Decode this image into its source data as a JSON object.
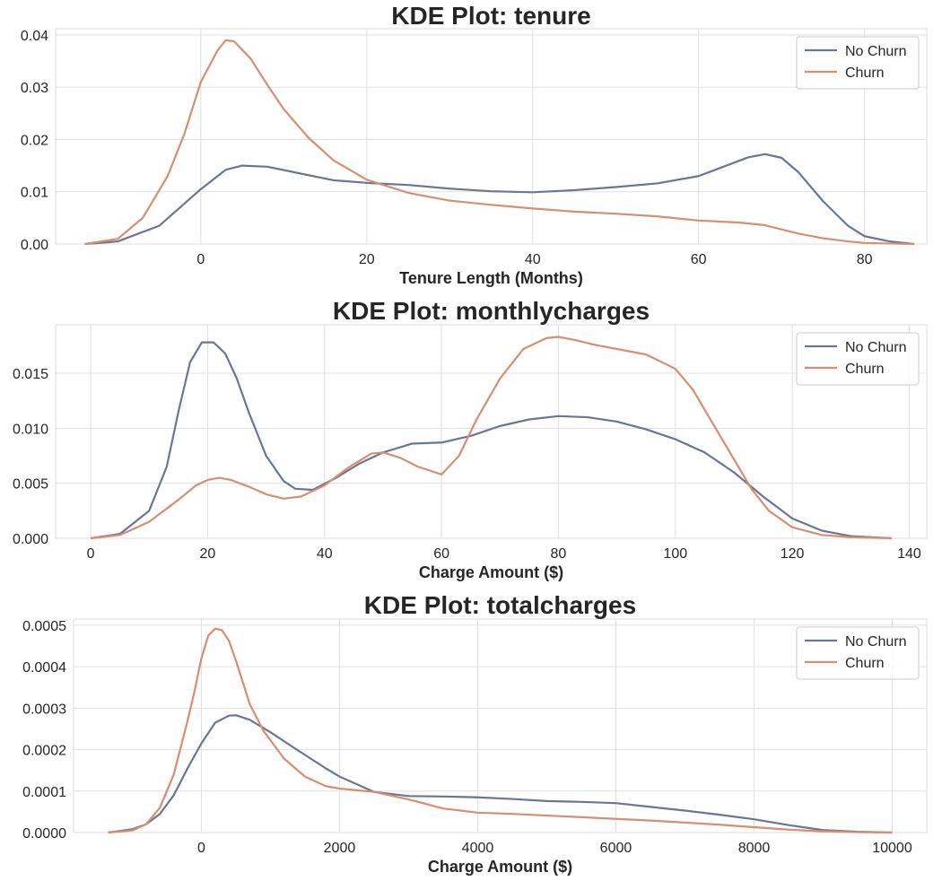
{
  "colors": {
    "no_churn": "#6c7592",
    "churn": "#d58f72",
    "grid": "#e0e0e0",
    "frame": "#dddddd"
  },
  "chart_data": [
    {
      "type": "line",
      "title": "KDE Plot: tenure",
      "xlabel": "Tenure Length (Months)",
      "ylabel": "",
      "xlim": [
        -17.5,
        87.5
      ],
      "ylim": [
        0,
        0.0412
      ],
      "xticks": [
        0,
        20,
        40,
        60,
        80
      ],
      "xtick_labels": [
        "0",
        "20",
        "40",
        "60",
        "80"
      ],
      "yticks": [
        0,
        0.01,
        0.02,
        0.03,
        0.04
      ],
      "ytick_labels": [
        "0.00",
        "0.01",
        "0.02",
        "0.03",
        "0.04"
      ],
      "grid": true,
      "legend": "top-right",
      "series": [
        {
          "name": "No Churn",
          "color": "#6c7592",
          "x": [
            -14,
            -10,
            -5,
            0,
            3,
            5,
            8,
            12,
            16,
            20,
            25,
            30,
            35,
            40,
            45,
            50,
            55,
            60,
            63,
            66,
            68,
            70,
            72,
            75,
            78,
            80,
            83,
            86
          ],
          "y": [
            0,
            0.0005,
            0.0035,
            0.0105,
            0.0142,
            0.015,
            0.0148,
            0.0135,
            0.0122,
            0.0117,
            0.0113,
            0.0106,
            0.0101,
            0.0099,
            0.0103,
            0.0109,
            0.0116,
            0.013,
            0.0148,
            0.0166,
            0.0172,
            0.0165,
            0.0138,
            0.0082,
            0.0035,
            0.0015,
            0.0005,
            0
          ]
        },
        {
          "name": "Churn",
          "color": "#d58f72",
          "x": [
            -14,
            -10,
            -7,
            -4,
            -2,
            0,
            2,
            3,
            4,
            6,
            8,
            10,
            13,
            16,
            20,
            25,
            30,
            35,
            40,
            45,
            50,
            55,
            60,
            65,
            68,
            70,
            72,
            75,
            78,
            80,
            83,
            86
          ],
          "y": [
            0,
            0.001,
            0.005,
            0.013,
            0.021,
            0.031,
            0.037,
            0.039,
            0.0388,
            0.0355,
            0.0305,
            0.0258,
            0.0203,
            0.016,
            0.0123,
            0.0098,
            0.0083,
            0.0075,
            0.0068,
            0.0062,
            0.0058,
            0.0053,
            0.0045,
            0.0041,
            0.0036,
            0.0028,
            0.002,
            0.0011,
            0.0005,
            0.0002,
            0.0001,
            0
          ]
        }
      ]
    },
    {
      "type": "line",
      "title": "KDE Plot: monthlycharges",
      "xlabel": "Charge Amount ($)",
      "ylabel": "",
      "xlim": [
        -6,
        143
      ],
      "ylim": [
        0,
        0.0194
      ],
      "xticks": [
        0,
        20,
        40,
        60,
        80,
        100,
        120,
        140
      ],
      "xtick_labels": [
        "0",
        "20",
        "40",
        "60",
        "80",
        "100",
        "120",
        "140"
      ],
      "yticks": [
        0,
        0.005,
        0.01,
        0.015
      ],
      "ytick_labels": [
        "0.000",
        "0.005",
        "0.010",
        "0.015"
      ],
      "grid": true,
      "legend": "top-right",
      "series": [
        {
          "name": "No Churn",
          "color": "#6c7592",
          "x": [
            0,
            5,
            10,
            13,
            15,
            17,
            19,
            21,
            23,
            25,
            27,
            30,
            33,
            35,
            38,
            42,
            46,
            50,
            55,
            60,
            65,
            70,
            75,
            80,
            85,
            90,
            95,
            100,
            105,
            110,
            115,
            120,
            125,
            130,
            137
          ],
          "y": [
            0,
            0.0004,
            0.0025,
            0.0065,
            0.0115,
            0.016,
            0.0178,
            0.0178,
            0.0168,
            0.0145,
            0.0115,
            0.0075,
            0.0052,
            0.0045,
            0.0044,
            0.0055,
            0.0068,
            0.0078,
            0.0086,
            0.0087,
            0.0093,
            0.0102,
            0.0108,
            0.0111,
            0.011,
            0.0106,
            0.0099,
            0.009,
            0.0078,
            0.006,
            0.0038,
            0.0018,
            0.0007,
            0.0002,
            0
          ]
        },
        {
          "name": "Churn",
          "color": "#d58f72",
          "x": [
            0,
            5,
            10,
            15,
            18,
            20,
            22,
            24,
            27,
            30,
            33,
            36,
            40,
            44,
            48,
            50,
            53,
            56,
            60,
            63,
            66,
            70,
            74,
            78,
            80,
            83,
            86,
            90,
            95,
            100,
            103,
            106,
            110,
            113,
            116,
            120,
            125,
            130,
            137
          ],
          "y": [
            0,
            0.0003,
            0.0015,
            0.0035,
            0.0048,
            0.0053,
            0.0055,
            0.0053,
            0.0047,
            0.004,
            0.0036,
            0.0038,
            0.0048,
            0.0064,
            0.0077,
            0.0078,
            0.0073,
            0.0065,
            0.0058,
            0.0075,
            0.0108,
            0.0145,
            0.0172,
            0.0182,
            0.0183,
            0.018,
            0.0176,
            0.0172,
            0.0167,
            0.0154,
            0.0135,
            0.0108,
            0.0072,
            0.0045,
            0.0025,
            0.001,
            0.0003,
            0.0001,
            0
          ]
        }
      ]
    },
    {
      "type": "line",
      "title": "KDE Plot: totalcharges",
      "xlabel": "Charge Amount ($)",
      "ylabel": "",
      "xlim": [
        -1850,
        10500
      ],
      "ylim": [
        0,
        0.000515
      ],
      "xticks": [
        0,
        2000,
        4000,
        6000,
        8000,
        10000
      ],
      "xtick_labels": [
        "0",
        "2000",
        "4000",
        "6000",
        "8000",
        "10000"
      ],
      "yticks": [
        0,
        0.0001,
        0.0002,
        0.0003,
        0.0004,
        0.0005
      ],
      "ytick_labels": [
        "0.0000",
        "0.0001",
        "0.0002",
        "0.0003",
        "0.0004",
        "0.0005"
      ],
      "grid": true,
      "legend": "top-right",
      "series": [
        {
          "name": "No Churn",
          "color": "#6c7592",
          "x": [
            -1350,
            -1000,
            -800,
            -600,
            -400,
            -200,
            0,
            200,
            400,
            500,
            700,
            1000,
            1400,
            1800,
            2000,
            2500,
            3000,
            3500,
            4000,
            4500,
            5000,
            5500,
            6000,
            6500,
            7000,
            7500,
            8000,
            8500,
            9000,
            9500,
            10000
          ],
          "y": [
            0,
            8e-06,
            2e-05,
            4.5e-05,
            9e-05,
            0.000155,
            0.000215,
            0.000265,
            0.000282,
            0.000283,
            0.000272,
            0.000242,
            0.000198,
            0.000155,
            0.000135,
            9.8e-05,
            8.8e-05,
            8.7e-05,
            8.5e-05,
            8.1e-05,
            7.6e-05,
            7.4e-05,
            7.1e-05,
            6.2e-05,
            5.3e-05,
            4.3e-05,
            3.2e-05,
            1.8e-05,
            6e-06,
            2e-06,
            0
          ]
        },
        {
          "name": "Churn",
          "color": "#d58f72",
          "x": [
            -1350,
            -1000,
            -800,
            -600,
            -400,
            -200,
            -100,
            0,
            100,
            200,
            300,
            400,
            500,
            700,
            900,
            1200,
            1500,
            1800,
            2000,
            2500,
            3000,
            3500,
            4000,
            4500,
            5000,
            5500,
            6000,
            6500,
            7000,
            7500,
            8000,
            8500,
            9000,
            9500,
            10000
          ],
          "y": [
            0,
            5e-06,
            2e-05,
            6e-05,
            0.00014,
            0.00027,
            0.00034,
            0.00042,
            0.000475,
            0.000492,
            0.000488,
            0.000462,
            0.000415,
            0.00031,
            0.000245,
            0.000178,
            0.000135,
            0.000112,
            0.000106,
            9.8e-05,
            8e-05,
            5.8e-05,
            4.8e-05,
            4.5e-05,
            4.1e-05,
            3.7e-05,
            3.3e-05,
            2.9e-05,
            2.4e-05,
            1.9e-05,
            1.3e-05,
            7e-06,
            3e-06,
            1e-06,
            0
          ]
        }
      ]
    }
  ]
}
